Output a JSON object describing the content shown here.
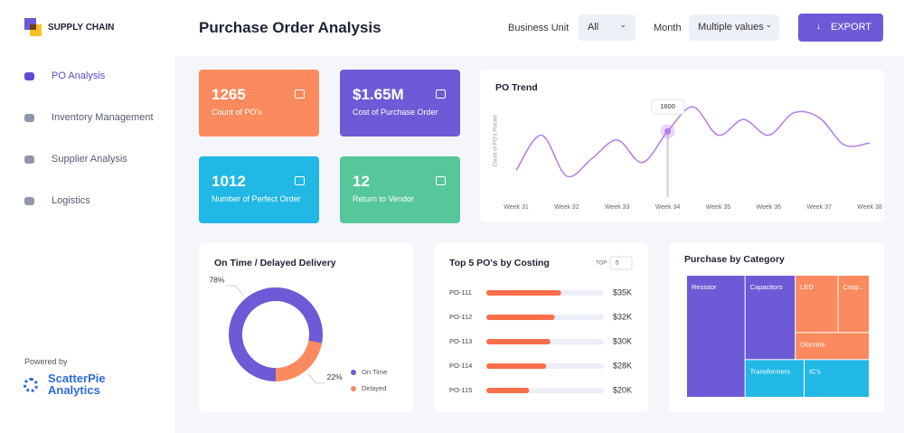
{
  "sidebar": {
    "brand": "SUPPLY CHAIN",
    "nav": [
      "PO Analysis",
      "Inventory Management",
      "Supplier Analysis",
      "Logistics"
    ],
    "powered_by": "Powered by",
    "vendor": [
      "ScatterPie",
      "Analytics"
    ]
  },
  "header": {
    "title": "Purchase Order Analysis",
    "filters": [
      {
        "label": "Business Unit",
        "value": "All"
      },
      {
        "label": "Month",
        "value": "Multiple values"
      }
    ],
    "export": "EXPORT"
  },
  "kpis": [
    {
      "value": "1265",
      "label": "Count of PO's",
      "color": "#fb8a5e"
    },
    {
      "value": "$1.65M",
      "label": "Cost of Purchase Order",
      "color": "#6c5ad6"
    },
    {
      "value": "1012",
      "label": "Number of Perfect Order",
      "color": "#22b8e6"
    },
    {
      "value": "12",
      "label": "Return to Vendor",
      "color": "#56c69b"
    }
  ],
  "chart_data": [
    {
      "type": "line",
      "title": "PO Trend",
      "y_label": "Count of PO's Placed",
      "categories": [
        "Week 31",
        null,
        "Week 32",
        null,
        "Week 33",
        null,
        "Week 34",
        null,
        "Week 35",
        null,
        "Week 36",
        null,
        "Week 37",
        null,
        "Week 38"
      ],
      "values": [
        1200,
        1560,
        1140,
        1320,
        1510,
        1280,
        1600,
        1850,
        1560,
        1720,
        1560,
        1790,
        1740,
        1460,
        1480
      ],
      "highlight": 6,
      "color": "#b57ce6",
      "ylim": [
        1000,
        2000
      ]
    },
    {
      "type": "pie",
      "title": "On Time / Delayed Delivery",
      "categories": [
        "On Time",
        "Delayed"
      ],
      "values": [
        78,
        22
      ],
      "value_labels": [
        "78%",
        "22%"
      ],
      "colors": [
        "#6c5ad6",
        "#fb8a5e"
      ],
      "donut": true
    },
    {
      "type": "bar",
      "orientation": "horizontal",
      "title": "Top 5 PO's by Costing",
      "control_label": "TOP",
      "control_value": "5",
      "categories": [
        "PO-111",
        "PO-112",
        "PO-113",
        "PO-114",
        "PO-115"
      ],
      "values": [
        35,
        32,
        30,
        28,
        20
      ],
      "value_labels": [
        "$35K",
        "$32K",
        "$30K",
        "$28K",
        "$20K"
      ],
      "xlim": [
        0,
        55
      ],
      "color": "#f96f4a"
    },
    {
      "type": "treemap",
      "title": "Purchase by Category",
      "categories": [
        "Resistor",
        "Capacitors",
        "LED",
        "Coop..",
        "Discrete",
        "Transformers",
        "IC's"
      ],
      "values": [
        32,
        19,
        11,
        8,
        9,
        10,
        11
      ],
      "colors": [
        "#6c5ad6",
        "#6c5ad6",
        "#fb8a5e",
        "#fb8a5e",
        "#fb8a5e",
        "#22b8e6",
        "#22b8e6"
      ]
    }
  ]
}
